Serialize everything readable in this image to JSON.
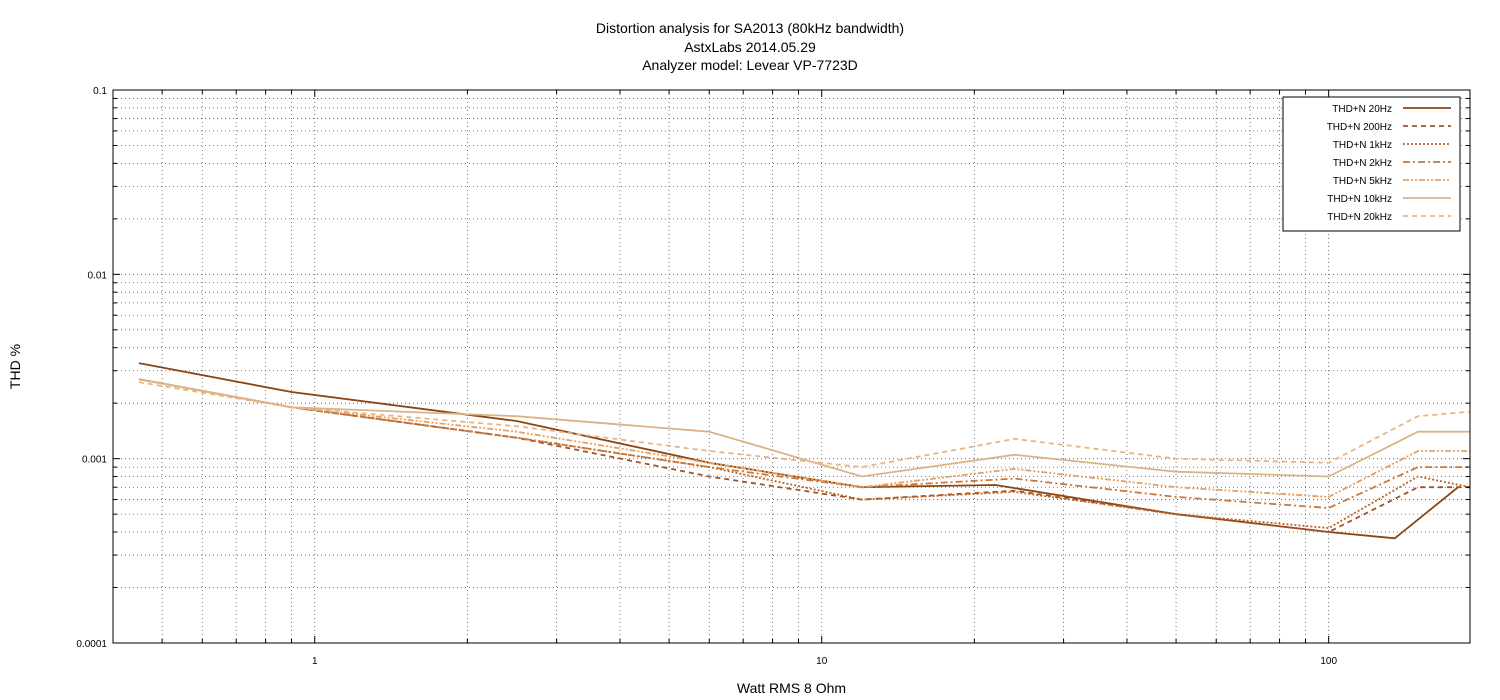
{
  "chart_data": {
    "type": "line",
    "title": "Distortion analysis for SA2013  (80kHz bandwidth)",
    "subtitle": "AstxLabs 2014.05.29",
    "subtitle2": "Analyzer model: Levear VP-7723D",
    "xlabel": "Watt RMS 8 Ohm",
    "ylabel": "THD %",
    "xscale": "log",
    "yscale": "log",
    "xlim": [
      0.4,
      190
    ],
    "ylim": [
      0.0001,
      0.1
    ],
    "x_ticks": [
      "1",
      "10",
      "100"
    ],
    "y_ticks": [
      "0.1",
      "0.01",
      "0.001",
      "0.0001"
    ],
    "grid": true,
    "legend_position": "top-right",
    "colors": {
      "THD+N 20Hz": "#8b4513",
      "THD+N 200Hz": "#a0522d",
      "THD+N 1kHz": "#c06420",
      "THD+N 2kHz": "#c8783c",
      "THD+N 5kHz": "#e6a060",
      "THD+N 10kHz": "#dab486",
      "THD+N 20kHz": "#e8b482"
    },
    "series": [
      {
        "name": "THD+N 20Hz",
        "dash": "solid",
        "points": [
          [
            0.45,
            0.0033
          ],
          [
            0.9,
            0.0023
          ],
          [
            2.5,
            0.0016
          ],
          [
            6,
            0.00095
          ],
          [
            12,
            0.0007
          ],
          [
            22,
            0.00072
          ],
          [
            50,
            0.0005
          ],
          [
            100,
            0.0004
          ],
          [
            135,
            0.00037
          ],
          [
            180,
            0.0007
          ]
        ]
      },
      {
        "name": "THD+N 200Hz",
        "dash": "dash",
        "points": [
          [
            0.45,
            0.0027
          ],
          [
            0.9,
            0.0019
          ],
          [
            2.5,
            0.0013
          ],
          [
            6,
            0.0008
          ],
          [
            12,
            0.0006
          ],
          [
            24,
            0.00067
          ],
          [
            50,
            0.0005
          ],
          [
            100,
            0.0004
          ],
          [
            150,
            0.0007
          ],
          [
            190,
            0.0007
          ]
        ]
      },
      {
        "name": "THD+N 1kHz",
        "dash": "dot",
        "points": [
          [
            0.45,
            0.0027
          ],
          [
            0.9,
            0.0019
          ],
          [
            2.5,
            0.0013
          ],
          [
            6,
            0.0009
          ],
          [
            12,
            0.0006
          ],
          [
            24,
            0.00066
          ],
          [
            50,
            0.0005
          ],
          [
            100,
            0.00042
          ],
          [
            150,
            0.0008
          ],
          [
            190,
            0.0007
          ]
        ]
      },
      {
        "name": "THD+N 2kHz",
        "dash": "dashdot",
        "points": [
          [
            0.45,
            0.0027
          ],
          [
            0.9,
            0.0019
          ],
          [
            2.5,
            0.0013
          ],
          [
            6,
            0.0009
          ],
          [
            12,
            0.0007
          ],
          [
            24,
            0.00078
          ],
          [
            50,
            0.00062
          ],
          [
            100,
            0.00054
          ],
          [
            150,
            0.0009
          ],
          [
            190,
            0.0009
          ]
        ]
      },
      {
        "name": "THD+N 5kHz",
        "dash": "dashdotdot",
        "points": [
          [
            0.45,
            0.0027
          ],
          [
            0.9,
            0.0019
          ],
          [
            2.5,
            0.0014
          ],
          [
            6,
            0.00095
          ],
          [
            12,
            0.0007
          ],
          [
            24,
            0.00088
          ],
          [
            50,
            0.0007
          ],
          [
            100,
            0.00062
          ],
          [
            150,
            0.0011
          ],
          [
            190,
            0.0011
          ]
        ]
      },
      {
        "name": "THD+N 10kHz",
        "dash": "solid",
        "points": [
          [
            0.45,
            0.0027
          ],
          [
            0.9,
            0.0019
          ],
          [
            2.5,
            0.0017
          ],
          [
            6,
            0.0014
          ],
          [
            12,
            0.0008
          ],
          [
            24,
            0.00105
          ],
          [
            50,
            0.00085
          ],
          [
            100,
            0.0008
          ],
          [
            150,
            0.0014
          ],
          [
            190,
            0.0014
          ]
        ]
      },
      {
        "name": "THD+N 20kHz",
        "dash": "dash",
        "points": [
          [
            0.45,
            0.0026
          ],
          [
            0.9,
            0.0019
          ],
          [
            2.5,
            0.0015
          ],
          [
            6,
            0.0011
          ],
          [
            12,
            0.0009
          ],
          [
            24,
            0.00128
          ],
          [
            50,
            0.001
          ],
          [
            100,
            0.00095
          ],
          [
            150,
            0.0017
          ],
          [
            190,
            0.0018
          ]
        ]
      }
    ]
  }
}
